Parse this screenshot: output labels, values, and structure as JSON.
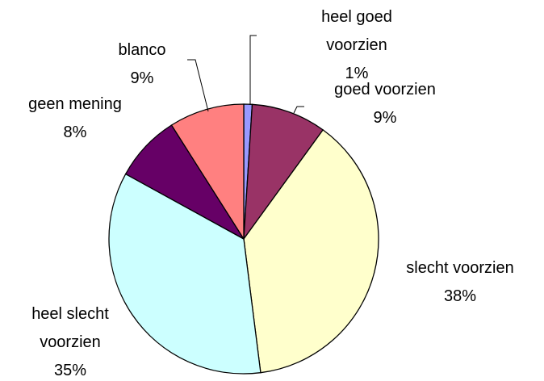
{
  "chart_data": {
    "type": "pie",
    "categories": [
      "heel goed voorzien",
      "goed voorzien",
      "slecht voorzien",
      "heel slecht voorzien",
      "geen mening",
      "blanco"
    ],
    "values": [
      1,
      9,
      38,
      35,
      8,
      9
    ],
    "value_labels": [
      "1%",
      "9%",
      "38%",
      "35%",
      "8%",
      "9%"
    ],
    "colors": [
      "#9999ff",
      "#993366",
      "#ffffcc",
      "#ccffff",
      "#660066",
      "#ff8080"
    ]
  }
}
